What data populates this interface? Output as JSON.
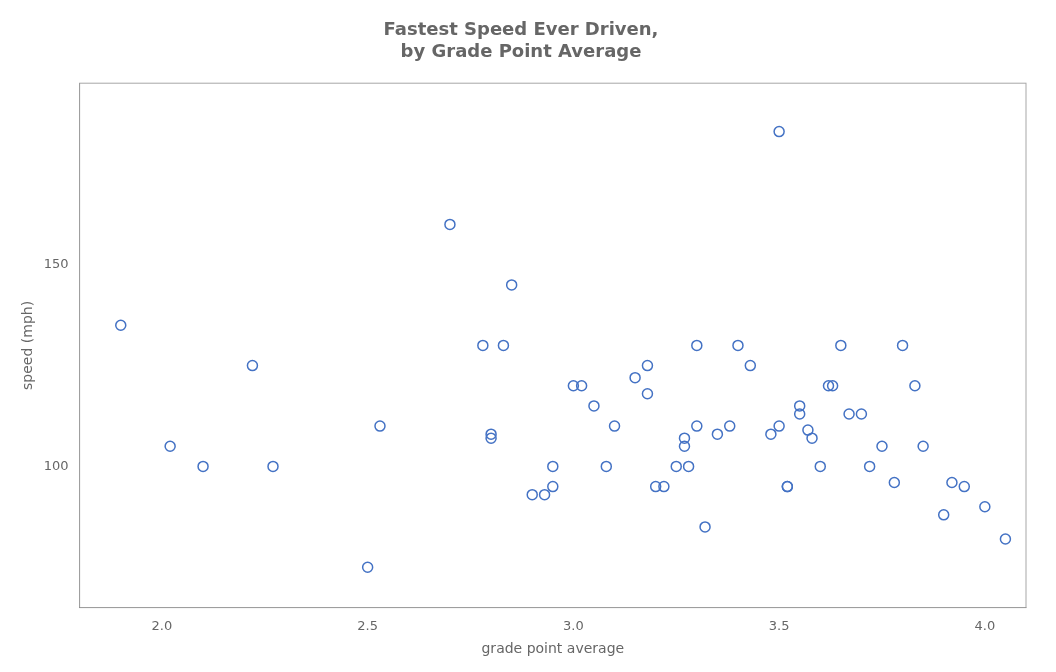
{
  "chart_data": {
    "type": "scatter",
    "title": "Fastest Speed Ever Driven,\nby Grade Point Average",
    "xlabel": "grade point average",
    "ylabel": "speed (mph)",
    "xlim": [
      1.8,
      4.1
    ],
    "ylim": [
      65,
      195
    ],
    "xticks": [
      {
        "value": 2.0,
        "label": "2.0"
      },
      2.5,
      {
        "value": 3.0,
        "label": "3.0"
      },
      3.5,
      {
        "value": 4.0,
        "label": "4.0"
      }
    ],
    "yticks": [
      100,
      150
    ],
    "color": "#4472C4",
    "marker": "open circle",
    "grid": false,
    "x": [
      1.9,
      2.02,
      2.1,
      2.22,
      2.27,
      2.5,
      2.53,
      2.7,
      2.78,
      2.8,
      2.8,
      2.83,
      2.85,
      2.9,
      2.93,
      2.95,
      2.95,
      3.0,
      3.02,
      3.05,
      3.08,
      3.1,
      3.15,
      3.18,
      3.18,
      3.2,
      3.22,
      3.25,
      3.27,
      3.27,
      3.28,
      3.3,
      3.3,
      3.32,
      3.35,
      3.38,
      3.4,
      3.43,
      3.48,
      3.5,
      3.5,
      3.52,
      3.52,
      3.55,
      3.55,
      3.57,
      3.58,
      3.6,
      3.62,
      3.63,
      3.65,
      3.67,
      3.7,
      3.72,
      3.75,
      3.78,
      3.8,
      3.83,
      3.85,
      3.9,
      3.92,
      3.95,
      4.0,
      4.05
    ],
    "values": [
      135,
      105,
      100,
      125,
      100,
      75,
      110,
      160,
      130,
      108,
      107,
      130,
      145,
      93,
      93,
      100,
      95,
      120,
      120,
      115,
      100,
      110,
      122,
      125,
      118,
      95,
      95,
      100,
      107,
      105,
      100,
      130,
      110,
      85,
      108,
      110,
      130,
      125,
      108,
      183,
      110,
      95,
      95,
      115,
      113,
      109,
      107,
      100,
      120,
      120,
      130,
      113,
      113,
      100,
      105,
      96,
      130,
      120,
      105,
      88,
      96,
      95,
      90,
      82
    ]
  }
}
